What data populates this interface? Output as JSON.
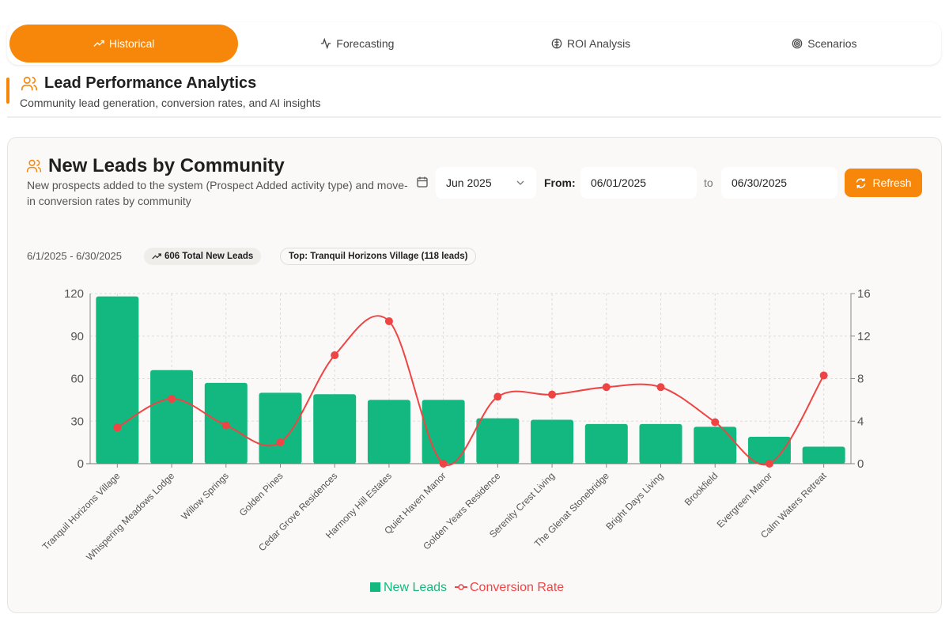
{
  "tabs": [
    {
      "label": "Historical",
      "icon": "trending-up-icon"
    },
    {
      "label": "Forecasting",
      "icon": "activity-icon"
    },
    {
      "label": "ROI Analysis",
      "icon": "brain-icon"
    },
    {
      "label": "Scenarios",
      "icon": "target-icon"
    }
  ],
  "section": {
    "title": "Lead Performance Analytics",
    "subtitle": "Community lead generation, conversion rates, and AI insights"
  },
  "card": {
    "title": "New Leads by Community",
    "subtitle": "New prospects added to the system (Prospect Added activity type) and move-in conversion rates by community",
    "month_select": "Jun 2025",
    "from_label": "From:",
    "from_date": "06/01/2025",
    "to_label": "to",
    "to_date": "06/30/2025",
    "refresh_label": "Refresh",
    "date_range": "6/1/2025 - 6/30/2025",
    "total_badge": "606 Total New Leads",
    "top_badge": "Top: Tranquil Horizons Village (118 leads)"
  },
  "colors": {
    "accent": "#f7870b",
    "bars": "#13b880",
    "line": "#ef4444"
  },
  "chart_data": {
    "type": "bar",
    "categories": [
      "Tranquil Horizons Village",
      "Whispering Meadows Lodge",
      "Willow Springs",
      "Golden Pines",
      "Cedar Grove Residences",
      "Harmony Hill Estates",
      "Quiet Haven Manor",
      "Golden Years Residence",
      "Serenity Crest Living",
      "The Glenat Stonebridge",
      "Bright Days Living",
      "Brookfield",
      "Evergreen Manor",
      "Calm Waters Retreat"
    ],
    "series": [
      {
        "name": "New Leads",
        "type": "bar",
        "axis": "left",
        "values": [
          118,
          66,
          57,
          50,
          49,
          45,
          45,
          32,
          31,
          28,
          28,
          26,
          19,
          12
        ]
      },
      {
        "name": "Conversion Rate",
        "type": "line",
        "axis": "right",
        "values": [
          3.4,
          6.1,
          3.6,
          2.0,
          10.2,
          13.4,
          0,
          6.3,
          6.5,
          7.2,
          7.2,
          3.9,
          0,
          8.3
        ]
      }
    ],
    "ylim": [
      0,
      120
    ],
    "yticks": [
      "0",
      "30",
      "60",
      "90",
      "120"
    ],
    "y2lim": [
      0,
      16
    ],
    "y2ticks": [
      "0",
      "4",
      "8",
      "12",
      "16"
    ],
    "grid": true,
    "legend": "bottom"
  }
}
